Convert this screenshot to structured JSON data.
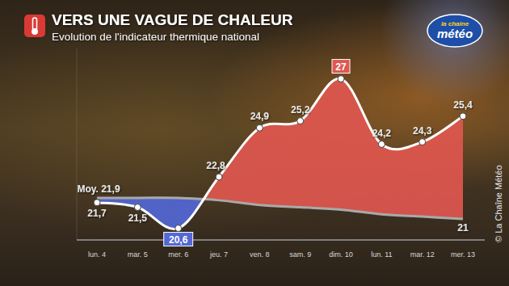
{
  "chart_data": {
    "type": "line",
    "title": "VERS UNE VAGUE DE CHALEUR",
    "subtitle": "Evolution de l'indicateur thermique national",
    "logo": [
      "la chaîne",
      "météo"
    ],
    "source": "© La Chaîne Météo",
    "categories": [
      "lun. 4",
      "mar. 5",
      "mer. 6",
      "jeu. 7",
      "ven. 8",
      "sam. 9",
      "dim. 10",
      "lun. 11",
      "mar. 12",
      "mer. 13"
    ],
    "series": [
      {
        "name": "Indicateur thermique national",
        "color": "#ffffff",
        "marker": "circle",
        "line_style": "solid",
        "values": [
          21.7,
          21.5,
          20.6,
          22.8,
          24.9,
          25.2,
          27,
          24.2,
          24.3,
          25.4
        ],
        "value_labels": [
          "21,7",
          "21,5",
          "20,6",
          "22,8",
          "24,9",
          "25,2",
          "27",
          "24,2",
          "24,3",
          "25,4"
        ]
      },
      {
        "name": "Moy.",
        "color": "#a9a9a9",
        "marker": "none",
        "line_style": "solid",
        "values": [
          21.9,
          21.9,
          21.9,
          21.8,
          21.6,
          21.5,
          21.4,
          21.2,
          21.1,
          21
        ],
        "value_labels": [
          "Moy. 21,9",
          null,
          null,
          null,
          null,
          null,
          null,
          null,
          null,
          "21"
        ]
      }
    ],
    "colors": [
      "#e0574f",
      "#5367d6"
    ],
    "ylim": [
      20.1,
      28.3
    ],
    "data_labels": true,
    "tick_labels": "x",
    "grid": false
  }
}
